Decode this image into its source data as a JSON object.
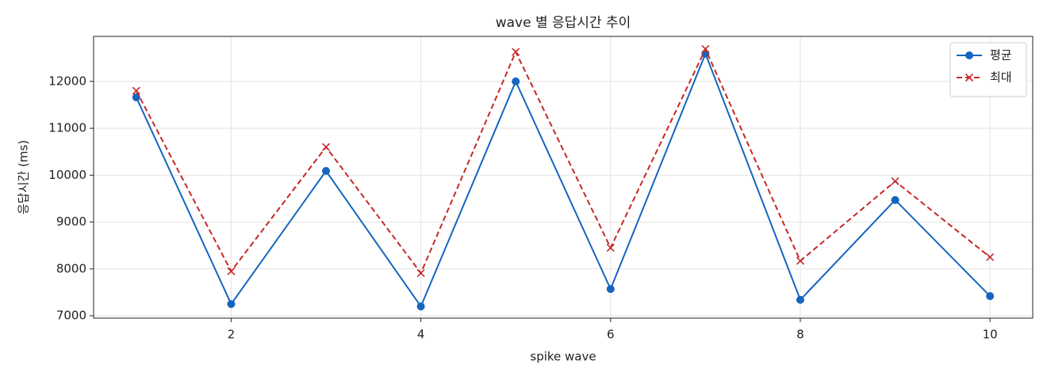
{
  "chart_data": {
    "type": "line",
    "title": "wave 별 응답시간 추이",
    "x_label": "spike wave",
    "y_label": "응답시간 (ms)",
    "x": [
      1,
      2,
      3,
      4,
      5,
      6,
      7,
      8,
      9,
      10
    ],
    "series": [
      {
        "name": "평균",
        "color": "#1565c0",
        "linestyle": "solid",
        "marker": "o",
        "values": [
          11660,
          7250,
          10090,
          7200,
          12000,
          7570,
          12590,
          7340,
          9470,
          7420
        ]
      },
      {
        "name": "최대",
        "color": "#c62828",
        "linestyle": "dashed",
        "marker": "x",
        "values": [
          11800,
          7950,
          10600,
          7910,
          12630,
          8450,
          12690,
          8170,
          9870,
          8250
        ]
      }
    ],
    "xlim": [
      0.55,
      10.45
    ],
    "xticks": [
      2,
      4,
      6,
      8,
      10
    ],
    "ylim": [
      6950,
      12960
    ],
    "yticks": [
      7000,
      8000,
      9000,
      10000,
      11000,
      12000
    ],
    "grid": true,
    "legend": "upper right"
  }
}
